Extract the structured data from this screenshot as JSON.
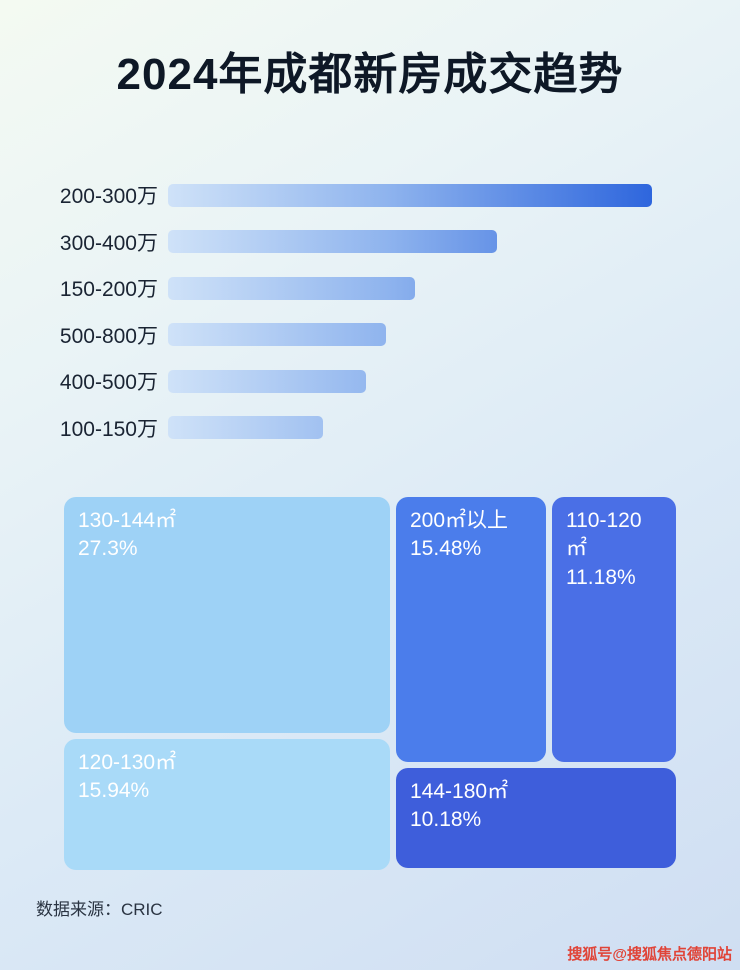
{
  "page": {
    "title": "2024年成都新房成交趋势",
    "source": "数据来源：CRIC",
    "watermark": "搜狐号@搜狐焦点德阳站"
  },
  "colors": {
    "bar_gradient_start": "#cfe2f8",
    "bar_gradient_end": "#2e66dd",
    "title_text": "#0e1826",
    "treemap_text": "#ffffff"
  },
  "chart_data": [
    {
      "type": "bar",
      "orientation": "horizontal",
      "title": "2024年成都新房成交趋势",
      "categories": [
        "200-300万",
        "300-400万",
        "150-200万",
        "500-800万",
        "400-500万",
        "100-150万"
      ],
      "values": [
        100,
        68,
        51,
        45,
        41,
        32
      ],
      "values_note": "no numeric labels shown in image; lengths relative to longest bar = 100",
      "xlabel": "",
      "ylabel": "",
      "grid": false,
      "legend": false
    },
    {
      "type": "treemap",
      "title": "",
      "items": [
        {
          "label": "130-144㎡",
          "pct": "27.3%",
          "value": 27.3,
          "color": "#9ed2f6"
        },
        {
          "label": "120-130㎡",
          "pct": "15.94%",
          "value": 15.94,
          "color": "#a9daf8"
        },
        {
          "label": "200㎡以上",
          "pct": "15.48%",
          "value": 15.48,
          "color": "#4b7deb"
        },
        {
          "label": "110-120㎡",
          "pct": "11.18%",
          "value": 11.18,
          "color": "#4a6fe6"
        },
        {
          "label": "144-180㎡",
          "pct": "10.18%",
          "value": 10.18,
          "color": "#3e5edb"
        }
      ]
    }
  ]
}
